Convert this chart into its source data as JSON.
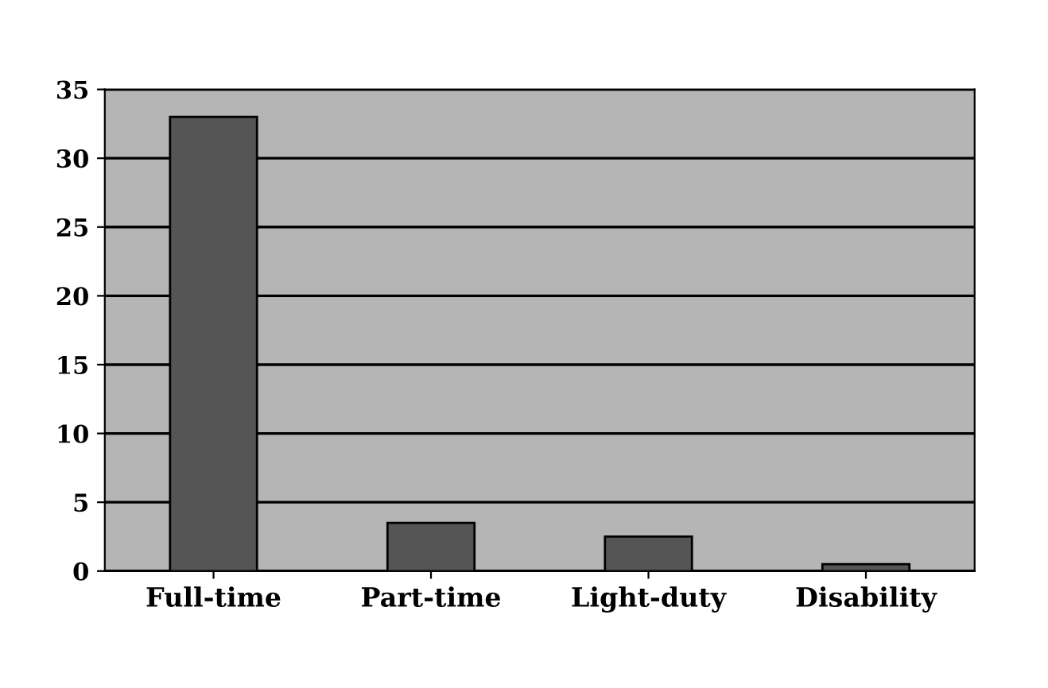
{
  "chart_data": {
    "type": "bar",
    "categories": [
      "Full-time",
      "Part-time",
      "Light-duty",
      "Disability"
    ],
    "values": [
      33,
      3.5,
      2.5,
      0.5
    ],
    "color": "#555555",
    "ylim": [
      0,
      35
    ],
    "yticks": [
      0,
      5,
      10,
      15,
      20,
      25,
      30,
      35
    ],
    "grid": "y"
  }
}
